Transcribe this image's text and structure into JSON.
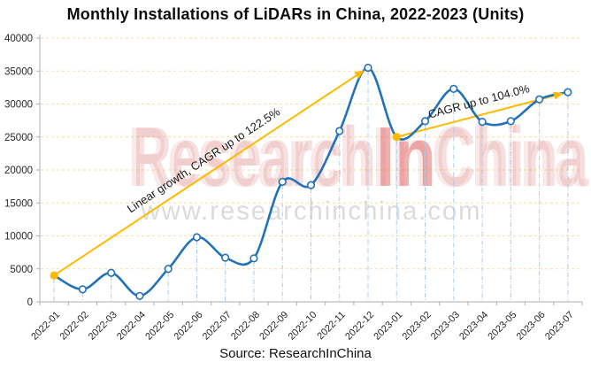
{
  "title": "Monthly Installations of LiDARs in China, 2022-2023 (Units)",
  "source_label": "Source: ResearchInChina",
  "watermark": {
    "brand_prefix": "Research",
    "brand_mid": "In",
    "brand_suffix": "China",
    "url": "www.researchinchina.com"
  },
  "colors": {
    "series_line": "#2272B9",
    "marker_fill": "#FFFFFF",
    "trend": "#FFB900",
    "h_grid": "#F5DCB0",
    "v_drop": "#A9CCE9",
    "axis": "#ADADAD",
    "axis_text": "#262626",
    "annotation_text": "#1a1a1a",
    "watermark_pink": "rgba(224,140,140,0.28)",
    "watermark_red": "rgba(220,80,80,0.45)",
    "watermark_url_gray": "rgba(190,190,190,0.55)"
  },
  "chart_data": {
    "type": "line",
    "title": "Monthly Installations of LiDARs in China, 2022-2023 (Units)",
    "categories": [
      "2022-01",
      "2022-02",
      "2022-03",
      "2022-04",
      "2022-05",
      "2022-06",
      "2022-07",
      "2022-08",
      "2022-09",
      "2022-10",
      "2022-11",
      "2022-12",
      "2023-01",
      "2023-02",
      "2023-03",
      "2023-04",
      "2023-05",
      "2023-06",
      "2023-07"
    ],
    "values": [
      4000,
      1900,
      4400,
      900,
      5000,
      9800,
      6700,
      6600,
      18200,
      17700,
      25900,
      35500,
      25000,
      27400,
      32300,
      27300,
      27400,
      30700,
      31800
    ],
    "ylim": [
      0,
      40000
    ],
    "ytick_step": 5000,
    "ytick_labels": [
      "0",
      "5000",
      "10000",
      "15000",
      "20000",
      "25000",
      "30000",
      "35000",
      "40000"
    ],
    "grid": "horizontal-dashed",
    "legend": "none",
    "line_style": "smooth",
    "highlight_point_indices": [
      0,
      12
    ],
    "trend_lines": [
      {
        "label": "Linear growth, CAGR up to 122.5%",
        "from_index": 0,
        "to_index": 11
      },
      {
        "label": "CAGR up to 104.0%",
        "from_index": 12,
        "to_index": 18
      }
    ]
  }
}
